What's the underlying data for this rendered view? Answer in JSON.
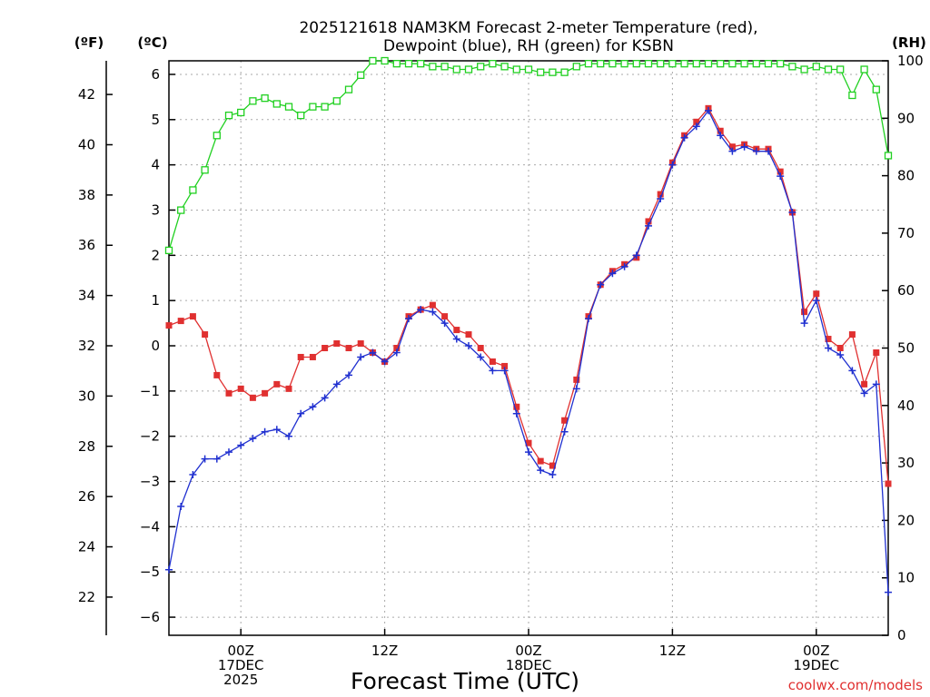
{
  "chart_data": {
    "type": "line",
    "title": "2025121618 NAM3KM Forecast 2-meter Temperature (red),",
    "subtitle": "Dewpoint (blue), RH (green) for KSBN",
    "xlabel": "Forecast Time (UTC)",
    "credit": "coolwx.com/models",
    "units": {
      "fahrenheit": "(ºF)",
      "celsius": "(ºC)",
      "rh": "(RH)"
    },
    "x_ticks": [
      {
        "h": 6,
        "lines": [
          "00Z",
          "17DEC",
          "2025"
        ]
      },
      {
        "h": 18,
        "lines": [
          "12Z"
        ]
      },
      {
        "h": 30,
        "lines": [
          "00Z",
          "18DEC"
        ]
      },
      {
        "h": 42,
        "lines": [
          "12Z"
        ]
      },
      {
        "h": 54,
        "lines": [
          "00Z",
          "19DEC"
        ]
      }
    ],
    "x_range_hours": [
      0,
      60
    ],
    "x_unit": "forecast hour",
    "ylim_celsius": [
      -6.4,
      6.3
    ],
    "ylim_rh": [
      0,
      100
    ],
    "yticks_celsius": [
      -6,
      -5,
      -4,
      -3,
      -2,
      -1,
      0,
      1,
      2,
      3,
      4,
      5,
      6
    ],
    "yticks_fahrenheit": [
      22,
      24,
      26,
      28,
      30,
      32,
      34,
      36,
      38,
      40,
      42
    ],
    "yticks_rh": [
      0,
      10,
      20,
      30,
      40,
      50,
      60,
      70,
      80,
      90,
      100
    ],
    "grid": true,
    "colors": {
      "temperature": "#e03030",
      "dewpoint": "#2030d0",
      "rh": "#20d020",
      "grid": "#aaaaaa"
    },
    "series": [
      {
        "name": "Temperature",
        "axis": "celsius",
        "marker": "square",
        "x": [
          0,
          1,
          2,
          3,
          4,
          5,
          6,
          7,
          8,
          9,
          10,
          11,
          12,
          13,
          14,
          15,
          16,
          17,
          18,
          19,
          20,
          21,
          22,
          23,
          24,
          25,
          26,
          27,
          28,
          29,
          30,
          31,
          32,
          33,
          34,
          35,
          36,
          37,
          38,
          39,
          40,
          41,
          42,
          43,
          44,
          45,
          46,
          47,
          48,
          49,
          50,
          51,
          52,
          53,
          54,
          55,
          56,
          57,
          58,
          59,
          60
        ],
        "values": [
          0.45,
          0.55,
          0.65,
          0.25,
          -0.65,
          -1.05,
          -0.95,
          -1.15,
          -1.05,
          -0.85,
          -0.95,
          -0.25,
          -0.25,
          -0.05,
          0.05,
          -0.05,
          0.05,
          -0.15,
          -0.35,
          -0.05,
          0.65,
          0.8,
          0.9,
          0.65,
          0.35,
          0.25,
          -0.05,
          -0.35,
          -0.45,
          -1.35,
          -2.15,
          -2.55,
          -2.65,
          -1.65,
          -0.75,
          0.65,
          1.35,
          1.65,
          1.8,
          1.95,
          2.75,
          3.35,
          4.05,
          4.65,
          4.95,
          5.25,
          4.75,
          4.4,
          4.45,
          4.35,
          4.35,
          3.85,
          2.95,
          0.75,
          1.15,
          0.15,
          -0.05,
          0.25,
          -0.85,
          -0.15,
          -3.05
        ]
      },
      {
        "name": "Dewpoint",
        "axis": "celsius",
        "marker": "plus",
        "x": [
          0,
          1,
          2,
          3,
          4,
          5,
          6,
          7,
          8,
          9,
          10,
          11,
          12,
          13,
          14,
          15,
          16,
          17,
          18,
          19,
          20,
          21,
          22,
          23,
          24,
          25,
          26,
          27,
          28,
          29,
          30,
          31,
          32,
          33,
          34,
          35,
          36,
          37,
          38,
          39,
          40,
          41,
          42,
          43,
          44,
          45,
          46,
          47,
          48,
          49,
          50,
          51,
          52,
          53,
          54,
          55,
          56,
          57,
          58,
          59,
          60
        ],
        "values": [
          -4.95,
          -3.55,
          -2.85,
          -2.5,
          -2.5,
          -2.35,
          -2.2,
          -2.05,
          -1.9,
          -1.85,
          -2.0,
          -1.5,
          -1.35,
          -1.15,
          -0.85,
          -0.65,
          -0.25,
          -0.15,
          -0.35,
          -0.15,
          0.6,
          0.8,
          0.75,
          0.5,
          0.15,
          0.0,
          -0.25,
          -0.55,
          -0.55,
          -1.5,
          -2.35,
          -2.75,
          -2.85,
          -1.9,
          -0.95,
          0.6,
          1.35,
          1.6,
          1.75,
          2.0,
          2.65,
          3.25,
          4.0,
          4.6,
          4.85,
          5.2,
          4.65,
          4.3,
          4.4,
          4.3,
          4.3,
          3.75,
          2.95,
          0.5,
          1.0,
          -0.05,
          -0.2,
          -0.55,
          -1.05,
          -0.85,
          -5.45
        ]
      },
      {
        "name": "RH",
        "axis": "rh",
        "marker": "open-square",
        "x": [
          0,
          1,
          2,
          3,
          4,
          5,
          6,
          7,
          8,
          9,
          10,
          11,
          12,
          13,
          14,
          15,
          16,
          17,
          18,
          19,
          20,
          21,
          22,
          23,
          24,
          25,
          26,
          27,
          28,
          29,
          30,
          31,
          32,
          33,
          34,
          35,
          36,
          37,
          38,
          39,
          40,
          41,
          42,
          43,
          44,
          45,
          46,
          47,
          48,
          49,
          50,
          51,
          52,
          53,
          54,
          55,
          56,
          57,
          58,
          59,
          60
        ],
        "values": [
          67,
          74,
          77.5,
          81,
          87,
          90.5,
          91,
          93,
          93.5,
          92.5,
          92,
          90.5,
          92,
          92,
          93,
          95,
          97.5,
          100,
          100,
          99.5,
          99.5,
          99.5,
          99,
          99,
          98.5,
          98.5,
          99,
          99.5,
          99,
          98.5,
          98.5,
          98,
          98,
          98,
          99,
          99.5,
          99.5,
          99.5,
          99.5,
          99.5,
          99.5,
          99.5,
          99.5,
          99.5,
          99.5,
          99.5,
          99.5,
          99.5,
          99.5,
          99.5,
          99.5,
          99.5,
          99,
          98.5,
          99,
          98.5,
          98.5,
          94,
          98.5,
          95,
          83.5
        ]
      }
    ]
  }
}
